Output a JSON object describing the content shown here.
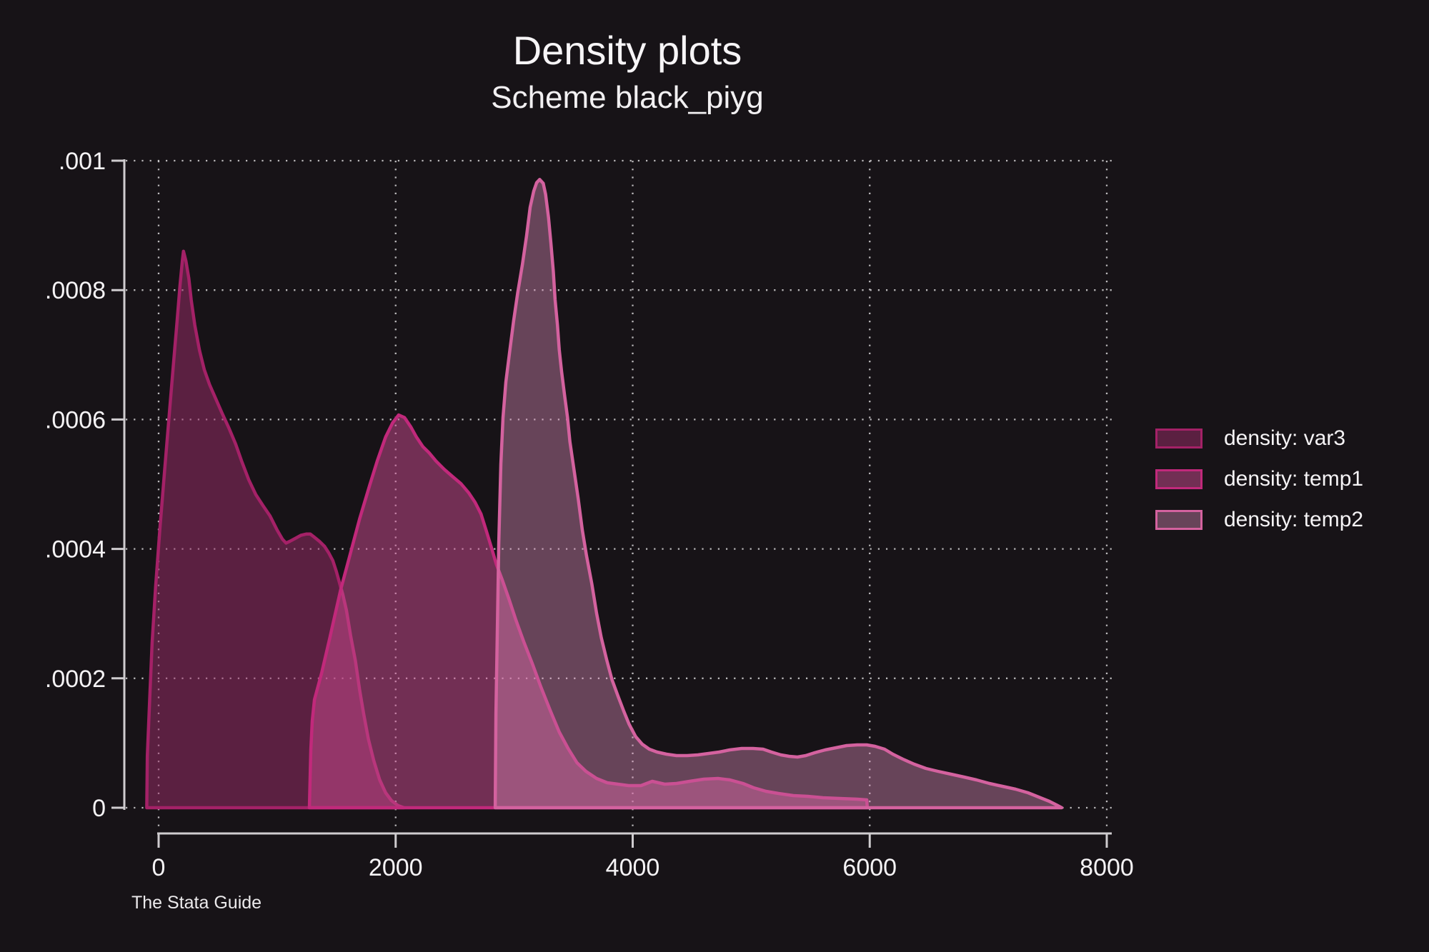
{
  "page": {
    "title": "Density plots",
    "subtitle": "Scheme black_piyg",
    "watermark": "The Stata Guide"
  },
  "colors": {
    "background": "#171317",
    "text": "#f5f3f5",
    "axis": "#cfcccf",
    "grid": "#d8d6d8"
  },
  "legend": {
    "position": "right",
    "items": [
      {
        "label": "density: var3"
      },
      {
        "label": "density: temp1"
      },
      {
        "label": "density: temp2"
      }
    ]
  },
  "chart_data": {
    "type": "area",
    "title": "Density plots",
    "subtitle": "Scheme black_piyg",
    "xlabel": "",
    "ylabel": "",
    "xlim": [
      0,
      8000
    ],
    "ylim": [
      0,
      0.001
    ],
    "grid": "dotted both axes",
    "legend_position": "right outside",
    "x_ticks": [
      {
        "label": "0",
        "value": 0
      },
      {
        "label": "2000",
        "value": 2000
      },
      {
        "label": "4000",
        "value": 4000
      },
      {
        "label": "6000",
        "value": 6000
      },
      {
        "label": "8000",
        "value": 8000
      }
    ],
    "y_ticks": [
      {
        "label": "0",
        "value": 0
      },
      {
        "label": ".0002",
        "value": 0.0002
      },
      {
        "label": ".0004",
        "value": 0.0004
      },
      {
        "label": ".0006",
        "value": 0.0006
      },
      {
        "label": ".0008",
        "value": 0.0008
      },
      {
        "label": ".001",
        "value": 0.001
      }
    ],
    "series": [
      {
        "name": "density: var3",
        "slug": "var3",
        "line_color": "#a42167",
        "fill_color": "rgba(154,44,104,0.52)",
        "points": [
          [
            -100,
            0
          ],
          [
            -95,
            8e-05
          ],
          [
            -75,
            0.00017
          ],
          [
            -55,
            0.000255
          ],
          [
            -25,
            0.000343
          ],
          [
            10,
            0.00043
          ],
          [
            50,
            0.00052
          ],
          [
            90,
            0.000608
          ],
          [
            125,
            0.000685
          ],
          [
            155,
            0.00075
          ],
          [
            180,
            0.000807
          ],
          [
            200,
            0.000845
          ],
          [
            210,
            0.00086
          ],
          [
            230,
            0.000845
          ],
          [
            255,
            0.000818
          ],
          [
            275,
            0.000785
          ],
          [
            305,
            0.000746
          ],
          [
            345,
            0.000707
          ],
          [
            385,
            0.000677
          ],
          [
            430,
            0.000654
          ],
          [
            475,
            0.000635
          ],
          [
            535,
            0.00061
          ],
          [
            595,
            0.000586
          ],
          [
            650,
            0.000562
          ],
          [
            700,
            0.000536
          ],
          [
            760,
            0.000507
          ],
          [
            820,
            0.000484
          ],
          [
            880,
            0.000467
          ],
          [
            940,
            0.000451
          ],
          [
            1000,
            0.000429
          ],
          [
            1045,
            0.000415
          ],
          [
            1075,
            0.000409
          ],
          [
            1110,
            0.000412
          ],
          [
            1150,
            0.000416
          ],
          [
            1200,
            0.000421
          ],
          [
            1245,
            0.000423
          ],
          [
            1280,
            0.000423
          ],
          [
            1315,
            0.000418
          ],
          [
            1355,
            0.000412
          ],
          [
            1400,
            0.000404
          ],
          [
            1435,
            0.000394
          ],
          [
            1470,
            0.000382
          ],
          [
            1500,
            0.000365
          ],
          [
            1530,
            0.000345
          ],
          [
            1555,
            0.000329
          ],
          [
            1585,
            0.000305
          ],
          [
            1620,
            0.000266
          ],
          [
            1660,
            0.000227
          ],
          [
            1695,
            0.000183
          ],
          [
            1730,
            0.000145
          ],
          [
            1770,
            0.000106
          ],
          [
            1815,
            7.28e-05
          ],
          [
            1865,
            4.3e-05
          ],
          [
            1915,
            2.32e-05
          ],
          [
            1965,
            1.1e-05
          ],
          [
            2020,
            3.3e-06
          ],
          [
            2070,
            0
          ]
        ]
      },
      {
        "name": "density: temp1",
        "slug": "temp1",
        "line_color": "#c1297b",
        "fill_color": "rgba(205,75,145,0.5)",
        "points": [
          [
            1272,
            0
          ],
          [
            1284,
            8.9e-05
          ],
          [
            1296,
            0.000134
          ],
          [
            1315,
            0.000167
          ],
          [
            1375,
            0.000208
          ],
          [
            1445,
            0.000263
          ],
          [
            1535,
            0.000336
          ],
          [
            1615,
            0.000391
          ],
          [
            1695,
            0.000446
          ],
          [
            1780,
            0.000498
          ],
          [
            1845,
            0.000536
          ],
          [
            1915,
            0.000573
          ],
          [
            1975,
            0.000595
          ],
          [
            2025,
            0.000607
          ],
          [
            2075,
            0.000603
          ],
          [
            2130,
            0.000588
          ],
          [
            2175,
            0.000573
          ],
          [
            2230,
            0.000558
          ],
          [
            2280,
            0.000549
          ],
          [
            2340,
            0.000536
          ],
          [
            2410,
            0.000523
          ],
          [
            2485,
            0.000511
          ],
          [
            2550,
            0.000501
          ],
          [
            2615,
            0.000487
          ],
          [
            2670,
            0.000472
          ],
          [
            2720,
            0.000454
          ],
          [
            2765,
            0.000428
          ],
          [
            2810,
            0.000401
          ],
          [
            2850,
            0.000376
          ],
          [
            2900,
            0.000352
          ],
          [
            2955,
            0.000323
          ],
          [
            3015,
            0.00029
          ],
          [
            3080,
            0.000257
          ],
          [
            3155,
            0.000222
          ],
          [
            3225,
            0.000187
          ],
          [
            3305,
            0.00015
          ],
          [
            3380,
            0.000117
          ],
          [
            3455,
            9.16e-05
          ],
          [
            3530,
            6.95e-05
          ],
          [
            3605,
            5.63e-05
          ],
          [
            3695,
            4.52e-05
          ],
          [
            3785,
            3.86e-05
          ],
          [
            3875,
            3.64e-05
          ],
          [
            3965,
            3.42e-05
          ],
          [
            4070,
            3.42e-05
          ],
          [
            4165,
            4.08e-05
          ],
          [
            4270,
            3.64e-05
          ],
          [
            4370,
            3.75e-05
          ],
          [
            4480,
            4.08e-05
          ],
          [
            4600,
            4.41e-05
          ],
          [
            4720,
            4.52e-05
          ],
          [
            4820,
            4.3e-05
          ],
          [
            4930,
            3.75e-05
          ],
          [
            5020,
            3.09e-05
          ],
          [
            5125,
            2.54e-05
          ],
          [
            5230,
            2.21e-05
          ],
          [
            5355,
            1.88e-05
          ],
          [
            5475,
            1.77e-05
          ],
          [
            5605,
            1.55e-05
          ],
          [
            5745,
            1.43e-05
          ],
          [
            5895,
            1.32e-05
          ],
          [
            5975,
            1.21e-05
          ],
          [
            5980,
            0
          ]
        ]
      },
      {
        "name": "density: temp2",
        "slug": "temp2",
        "line_color": "#d4629f",
        "fill_color": "rgba(214,135,180,0.42)",
        "points": [
          [
            2840,
            0
          ],
          [
            2846,
            0.000145
          ],
          [
            2858,
            0.000277
          ],
          [
            2870,
            0.00041
          ],
          [
            2888,
            0.000531
          ],
          [
            2906,
            0.000603
          ],
          [
            2930,
            0.000658
          ],
          [
            2960,
            0.000702
          ],
          [
            2995,
            0.000752
          ],
          [
            3030,
            0.000796
          ],
          [
            3070,
            0.00084
          ],
          [
            3105,
            0.000884
          ],
          [
            3135,
            0.000928
          ],
          [
            3165,
            0.000953
          ],
          [
            3190,
            0.000966
          ],
          [
            3215,
            0.000971
          ],
          [
            3245,
            0.000965
          ],
          [
            3265,
            0.000948
          ],
          [
            3290,
            0.000912
          ],
          [
            3310,
            0.000873
          ],
          [
            3330,
            0.000829
          ],
          [
            3345,
            0.000785
          ],
          [
            3365,
            0.000746
          ],
          [
            3380,
            0.000708
          ],
          [
            3400,
            0.000674
          ],
          [
            3425,
            0.000638
          ],
          [
            3450,
            0.000603
          ],
          [
            3470,
            0.000566
          ],
          [
            3500,
            0.000528
          ],
          [
            3540,
            0.000478
          ],
          [
            3575,
            0.000429
          ],
          [
            3610,
            0.00039
          ],
          [
            3655,
            0.000346
          ],
          [
            3695,
            0.000301
          ],
          [
            3735,
            0.000263
          ],
          [
            3780,
            0.000229
          ],
          [
            3825,
            0.000198
          ],
          [
            3875,
            0.000173
          ],
          [
            3925,
            0.000149
          ],
          [
            3970,
            0.000129
          ],
          [
            4025,
            0.00011
          ],
          [
            4080,
            9.82e-05
          ],
          [
            4140,
            9.05e-05
          ],
          [
            4205,
            8.61e-05
          ],
          [
            4285,
            8.28e-05
          ],
          [
            4370,
            8.06e-05
          ],
          [
            4460,
            8.06e-05
          ],
          [
            4550,
            8.17e-05
          ],
          [
            4640,
            8.39e-05
          ],
          [
            4730,
            8.61e-05
          ],
          [
            4820,
            8.94e-05
          ],
          [
            4920,
            9.16e-05
          ],
          [
            5015,
            9.16e-05
          ],
          [
            5100,
            9.05e-05
          ],
          [
            5170,
            8.61e-05
          ],
          [
            5250,
            8.17e-05
          ],
          [
            5320,
            7.95e-05
          ],
          [
            5390,
            7.84e-05
          ],
          [
            5460,
            8.06e-05
          ],
          [
            5535,
            8.5e-05
          ],
          [
            5625,
            8.94e-05
          ],
          [
            5715,
            9.27e-05
          ],
          [
            5805,
            9.6e-05
          ],
          [
            5895,
            9.71e-05
          ],
          [
            5975,
            9.71e-05
          ],
          [
            6045,
            9.49e-05
          ],
          [
            6125,
            9.05e-05
          ],
          [
            6195,
            8.28e-05
          ],
          [
            6280,
            7.51e-05
          ],
          [
            6375,
            6.73e-05
          ],
          [
            6475,
            6.07e-05
          ],
          [
            6575,
            5.63e-05
          ],
          [
            6685,
            5.19e-05
          ],
          [
            6795,
            4.75e-05
          ],
          [
            6900,
            4.3e-05
          ],
          [
            7010,
            3.75e-05
          ],
          [
            7120,
            3.31e-05
          ],
          [
            7230,
            2.87e-05
          ],
          [
            7335,
            2.32e-05
          ],
          [
            7440,
            1.55e-05
          ],
          [
            7515,
            9.9e-06
          ],
          [
            7575,
            4.4e-06
          ],
          [
            7620,
            0
          ]
        ]
      }
    ]
  }
}
